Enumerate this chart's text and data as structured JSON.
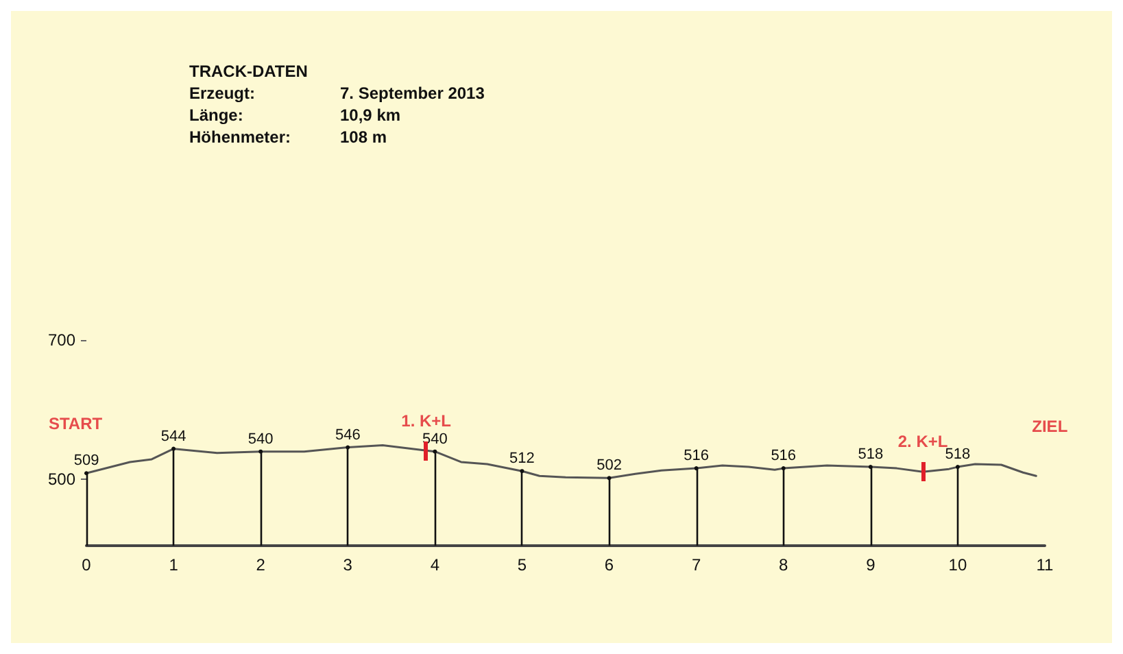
{
  "chart_data": {
    "type": "line",
    "title": "TRACK-DATEN",
    "x": [
      0,
      0.5,
      0.75,
      1,
      1.5,
      2,
      2.5,
      3,
      3.4,
      4,
      4.3,
      4.6,
      5,
      5.2,
      5.5,
      6,
      6.3,
      6.6,
      7,
      7.3,
      7.6,
      7.9,
      8,
      8.5,
      9,
      9.3,
      9.6,
      9.9,
      10,
      10.2,
      10.5,
      10.75,
      10.9
    ],
    "values": [
      509,
      525,
      529,
      544,
      538,
      540,
      540,
      546,
      549,
      540,
      525,
      522,
      512,
      505,
      503,
      502,
      508,
      513,
      516,
      520,
      518,
      514,
      516,
      520,
      518,
      516,
      511,
      515,
      518,
      522,
      521,
      510,
      505
    ],
    "value_labels": [
      "509",
      null,
      null,
      "544",
      null,
      "540",
      null,
      "546",
      null,
      "540",
      null,
      null,
      "512",
      null,
      null,
      "502",
      null,
      null,
      "516",
      null,
      null,
      null,
      "516",
      null,
      "518",
      null,
      null,
      null,
      "518",
      null,
      null,
      null,
      null
    ],
    "color": "#555555",
    "xlim": [
      0,
      11
    ],
    "xticks": [
      0,
      1,
      2,
      3,
      4,
      5,
      6,
      7,
      8,
      9,
      10,
      11
    ],
    "ylim": [
      405,
      700
    ],
    "yticks": [
      500,
      700
    ],
    "annotations": [
      "Erzeugt:",
      "7. September 2013",
      "Länge:",
      "10,9 km",
      "Höhenmeter:",
      "108 m",
      {
        "text": "START",
        "x": 0,
        "y": 509
      },
      {
        "text": "1. K+L",
        "x": 3.9,
        "y": 541
      },
      {
        "text": "2. K+L",
        "x": 9.6,
        "y": 511
      },
      {
        "text": "ZIEL",
        "x": 10.9,
        "y": 505
      }
    ]
  }
}
